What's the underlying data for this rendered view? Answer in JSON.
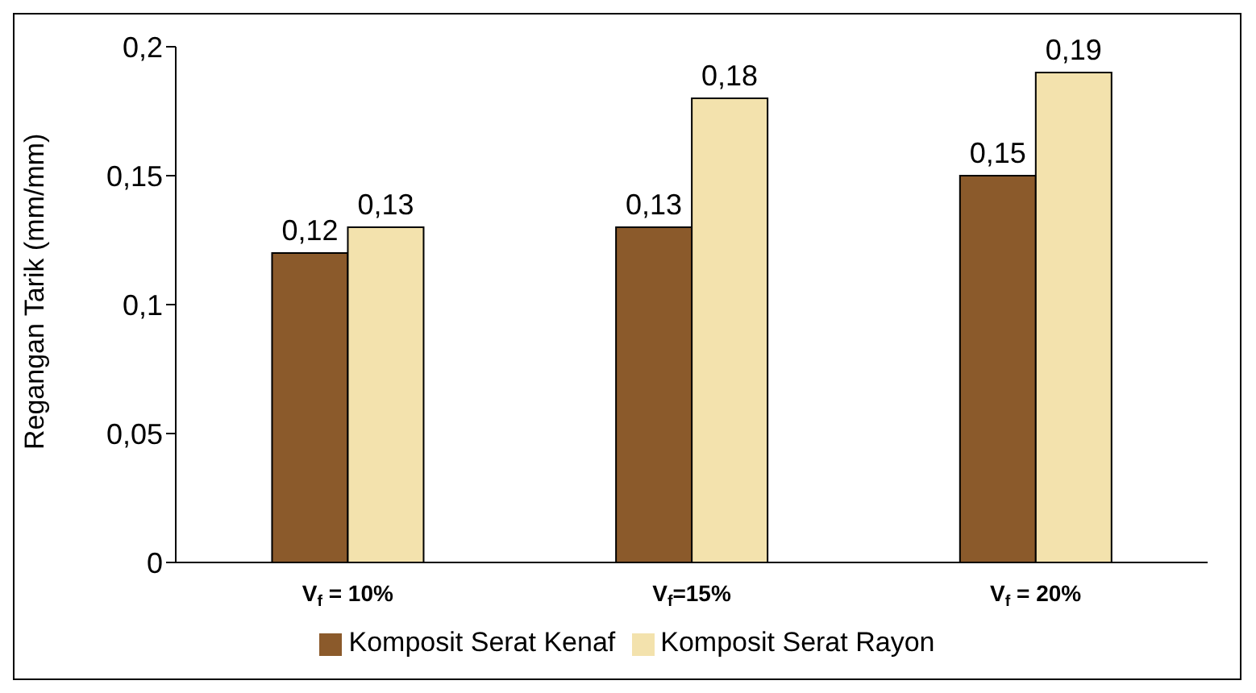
{
  "chart_data": {
    "type": "bar",
    "ylabel": "Regangan Tarik (mm/mm)",
    "categories": [
      "V$_{f}$ = 10%",
      "V$_{f}$=15%",
      "V$_{f}$ = 20%"
    ],
    "series": [
      {
        "name": "Komposit Serat Kenaf",
        "color": "#8b5a2b",
        "values": [
          0.12,
          0.13,
          0.15
        ],
        "value_labels": [
          "0,12",
          "0,13",
          "0,15"
        ]
      },
      {
        "name": "Komposit Serat Rayon",
        "color": "#f3e2ad",
        "values": [
          0.13,
          0.18,
          0.19
        ],
        "value_labels": [
          "0,13",
          "0,18",
          "0,19"
        ]
      }
    ],
    "ylim": [
      0,
      0.2
    ],
    "yticks": [
      0,
      {
        "value": 0.05,
        "label": "0,05"
      },
      {
        "value": 0.1,
        "label": "0,1"
      },
      {
        "value": 0.15,
        "label": "0,15"
      },
      {
        "value": 0.2,
        "label": "0,2"
      }
    ],
    "grid": false,
    "legend": "bottom"
  }
}
